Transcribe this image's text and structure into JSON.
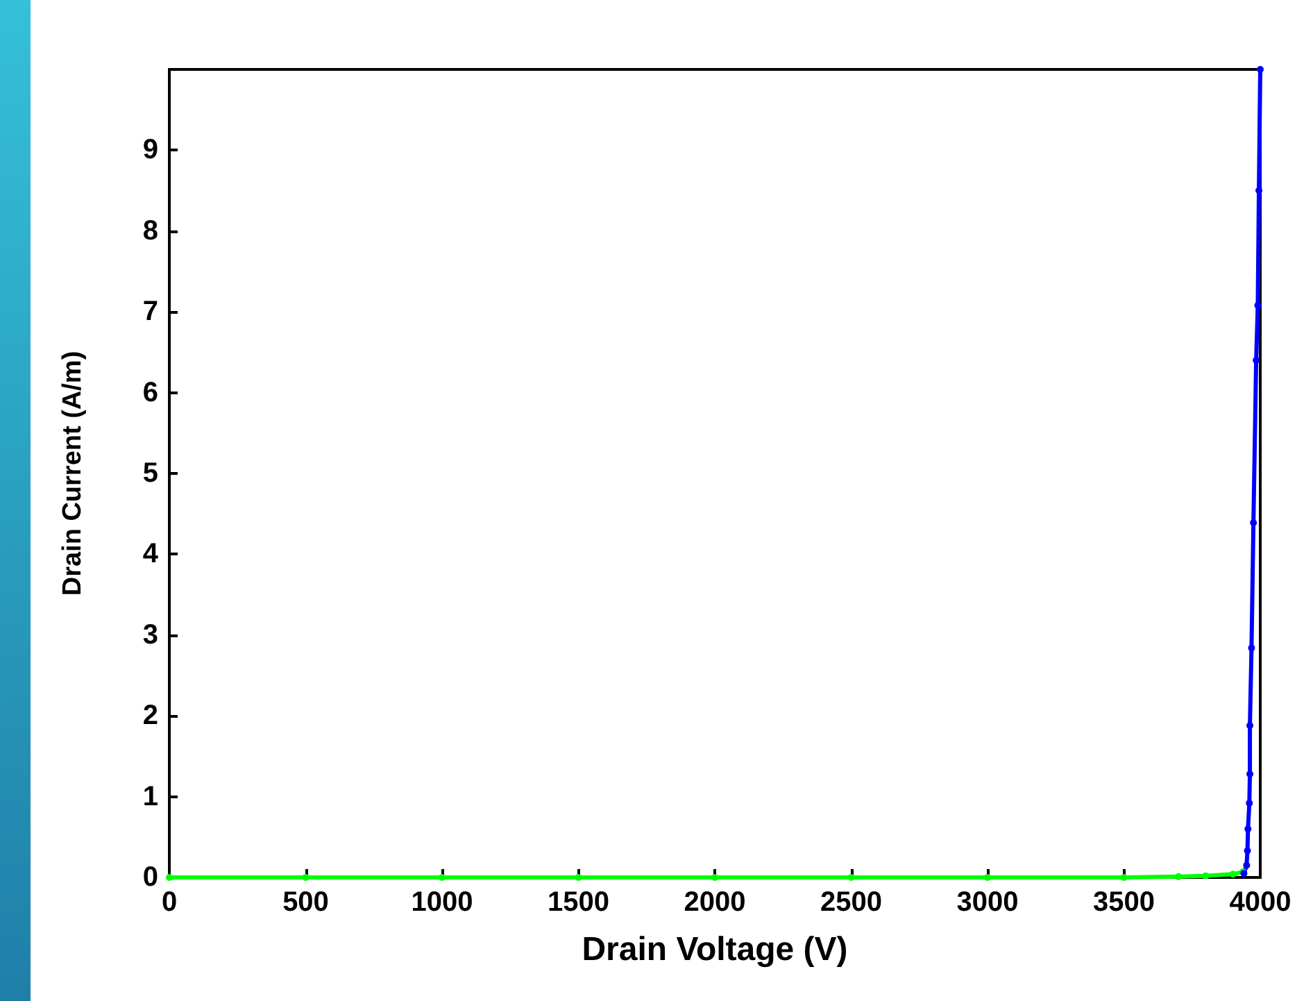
{
  "chart_data": {
    "type": "line",
    "xlabel": "Drain Voltage (V)",
    "ylabel": "Drain Current (A/m)",
    "xlim": [
      0,
      4000
    ],
    "xticks": [
      0,
      500,
      1000,
      1500,
      2000,
      2500,
      3000,
      3500,
      4000
    ],
    "ylim": [
      0,
      10
    ],
    "yticks": [
      0,
      1,
      2,
      3,
      4,
      5,
      6,
      7,
      8,
      9
    ],
    "grid": false,
    "marker": "circle",
    "line_style": "solid",
    "series": [
      {
        "color": "#00ff00",
        "x": [
          0,
          500,
          1000,
          1500,
          2000,
          2500,
          3000,
          3500,
          3700,
          3800,
          3900,
          3937
        ],
        "values": [
          0,
          0,
          0,
          0,
          0,
          0,
          0,
          0,
          0.01,
          0.02,
          0.04,
          0.07
        ]
      },
      {
        "color": "#0000ff",
        "x": [
          3940,
          3950,
          3953,
          3955,
          3960,
          3962,
          3962,
          3968,
          3975,
          3985,
          3991,
          3995,
          4000
        ],
        "values": [
          0.05,
          0.15,
          0.33,
          0.6,
          0.92,
          1.28,
          1.88,
          2.84,
          4.39,
          6.4,
          7.08,
          8.5,
          10
        ]
      }
    ]
  }
}
